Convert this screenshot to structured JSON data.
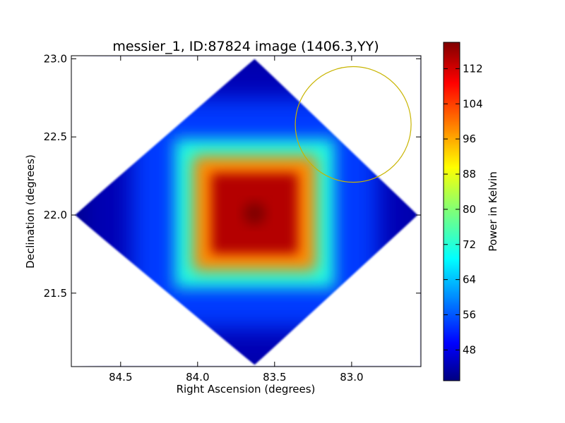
{
  "chart_data": [
    {
      "type": "heatmap",
      "title": "messier_1, ID:87824 image (1406.3,YY)",
      "xlabel": "Right Ascension (degrees)",
      "ylabel": "Declination (degrees)",
      "xlim": [
        84.82,
        82.55
      ],
      "ylim": [
        21.03,
        23.02
      ],
      "x_ticks": [
        84.5,
        84.0,
        83.5,
        83.0
      ],
      "x_tick_labels": [
        "84.5",
        "84.0",
        "83.5",
        "83.0"
      ],
      "y_ticks": [
        21.5,
        22.0,
        22.5,
        23.0
      ],
      "y_tick_labels": [
        "21.5",
        "22.0",
        "22.5",
        "23.0"
      ],
      "grid": false,
      "colormap": "jet",
      "image": {
        "footprint_vertices": [
          [
            83.63,
            23.0
          ],
          [
            82.57,
            22.0
          ],
          [
            83.63,
            21.04
          ],
          [
            84.8,
            22.0
          ]
        ],
        "peak": {
          "ra": 83.63,
          "dec": 22.01,
          "value": 118
        },
        "edge_value": 42,
        "levels": [
          {
            "halfwidth_deg": 0.28,
            "value": 114
          },
          {
            "halfwidth_deg": 0.4,
            "value": 98
          },
          {
            "halfwidth_deg": 0.52,
            "value": 72
          },
          {
            "halfwidth_deg": 0.8,
            "value": 55
          },
          {
            "halfwidth_deg": 1.1,
            "value": 45
          }
        ]
      },
      "annotations": [
        {
          "type": "circle",
          "ra": 82.99,
          "dec": 22.58,
          "radius_deg": 0.37,
          "color": "#c8b400"
        }
      ],
      "colorbar": {
        "label": "Power in Kelvin",
        "min": 41,
        "max": 118,
        "ticks": [
          48,
          56,
          64,
          72,
          80,
          88,
          96,
          104,
          112
        ],
        "tick_labels": [
          "48",
          "56",
          "64",
          "72",
          "80",
          "88",
          "96",
          "104",
          "112"
        ]
      }
    }
  ]
}
